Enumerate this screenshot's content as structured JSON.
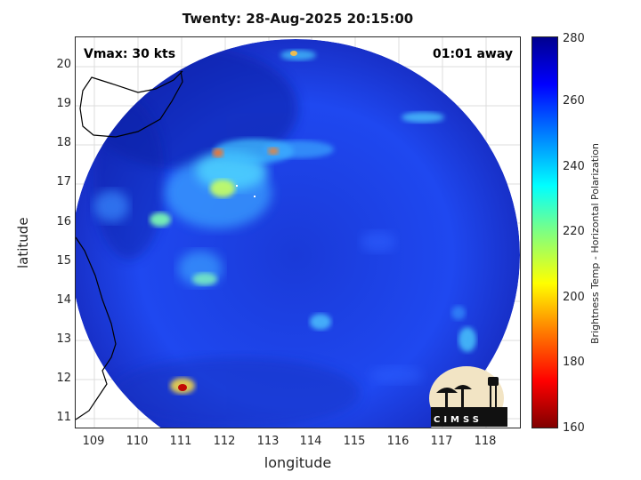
{
  "title": "Twenty: 28-Aug-2025 20:15:00",
  "annotations": {
    "vmax": "Vmax: 30 kts",
    "time_away": "01:01 away"
  },
  "axes": {
    "xlabel": "longitude",
    "ylabel": "latitude",
    "x_ticks": [
      "109",
      "110",
      "111",
      "112",
      "113",
      "114",
      "115",
      "116",
      "117",
      "118"
    ],
    "y_ticks": [
      "20",
      "19",
      "18",
      "17",
      "16",
      "15",
      "14",
      "13",
      "12",
      "11"
    ],
    "xlim": [
      108.5,
      118.8
    ],
    "ylim": [
      10.75,
      20.75
    ]
  },
  "colorbar": {
    "label": "Brightness Temp - Horizontal Polarization",
    "ticks": [
      "280",
      "260",
      "240",
      "220",
      "200",
      "180",
      "160"
    ],
    "range": [
      160,
      280
    ],
    "colormap": "jet"
  },
  "logo": {
    "text": "CIMSS"
  },
  "colors": {
    "background_field": "#1a3fe8",
    "swath_dark": "#1024b8",
    "coast": "#000000"
  }
}
